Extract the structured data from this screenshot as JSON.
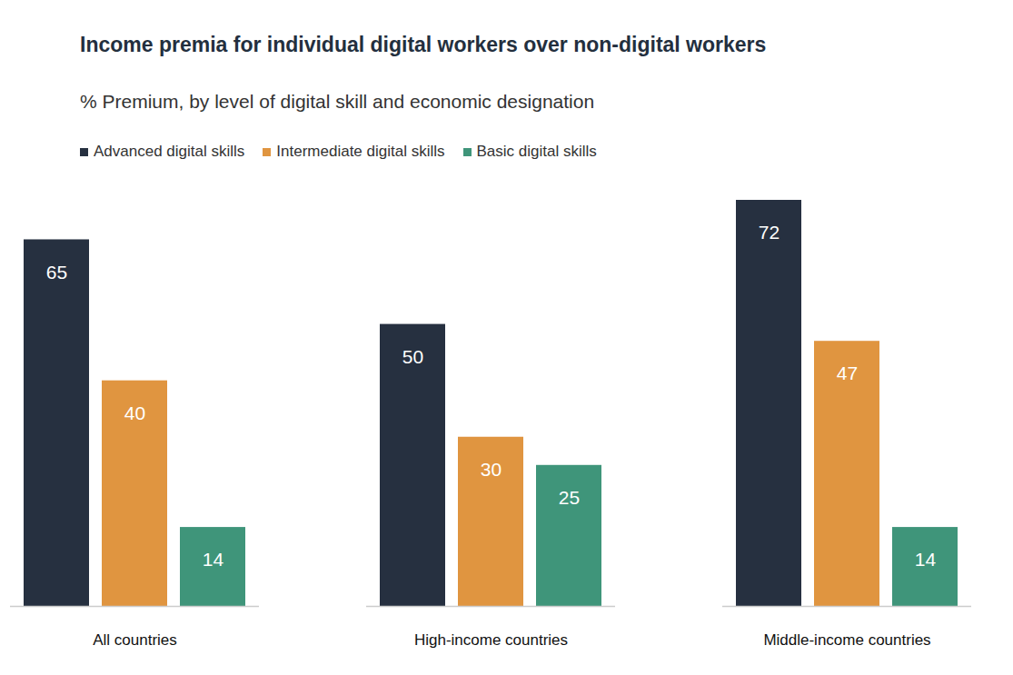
{
  "chart_data": {
    "type": "bar",
    "title": "Income premia for individual digital workers over non-digital workers",
    "subtitle": "% Premium, by level of digital skill and economic designation",
    "categories": [
      "All countries",
      "High-income countries",
      "Middle-income countries"
    ],
    "series": [
      {
        "name": "Advanced digital skills",
        "color": "#263040",
        "values": [
          65,
          50,
          72
        ]
      },
      {
        "name": "Intermediate digital skills",
        "color": "#e09540",
        "values": [
          40,
          30,
          47
        ]
      },
      {
        "name": "Basic digital skills",
        "color": "#3f957a",
        "values": [
          14,
          25,
          14
        ]
      }
    ],
    "ylim": [
      0,
      72
    ],
    "yticks": [],
    "grid": false,
    "legend": "top-left",
    "data_labels": true,
    "tick_labels": "x"
  }
}
